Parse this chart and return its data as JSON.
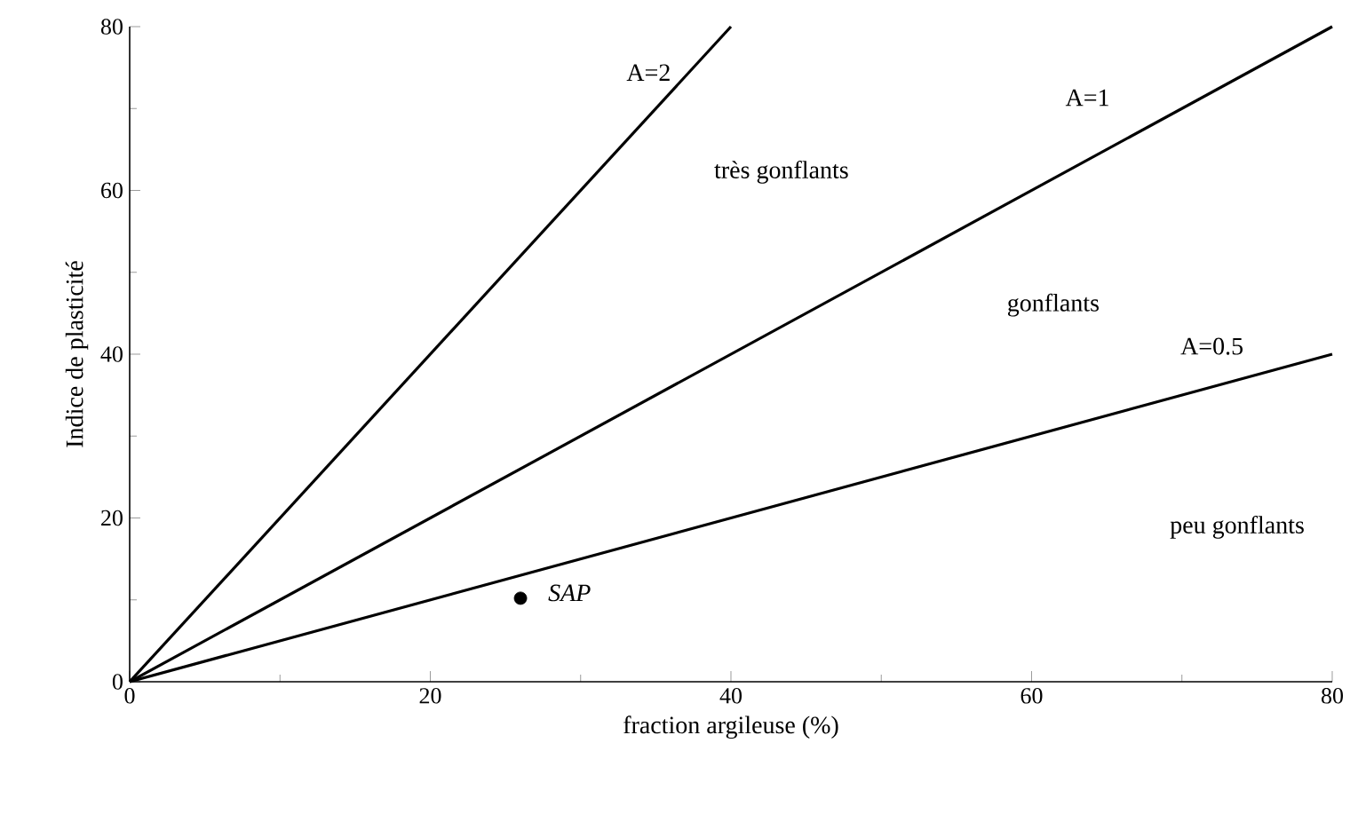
{
  "chart_data": {
    "type": "line",
    "xlabel": "fraction argileuse (%)",
    "ylabel": "Indice de plasticité",
    "xlim": [
      0,
      80
    ],
    "ylim": [
      0,
      80
    ],
    "xticks": [
      0,
      20,
      40,
      60,
      80
    ],
    "yticks": [
      0,
      20,
      40,
      60,
      80
    ],
    "grid": false,
    "marker": "none",
    "line_style": "solid",
    "series": [
      {
        "name": "A=2",
        "color": "#000000",
        "x": [
          0,
          40
        ],
        "values": [
          0,
          80
        ]
      },
      {
        "name": "A=1",
        "color": "#000000",
        "x": [
          0,
          80
        ],
        "values": [
          0,
          80
        ]
      },
      {
        "name": "A=0.5",
        "color": "#000000",
        "x": [
          0,
          80
        ],
        "values": [
          0,
          40
        ]
      },
      {
        "name": "SAP",
        "type": "scatter",
        "marker": "circle",
        "color": "#000000",
        "x": [
          26
        ],
        "values": [
          10.2
        ]
      }
    ],
    "annotations": [
      "très gonflants",
      "gonflants",
      "peu gonflants"
    ]
  }
}
